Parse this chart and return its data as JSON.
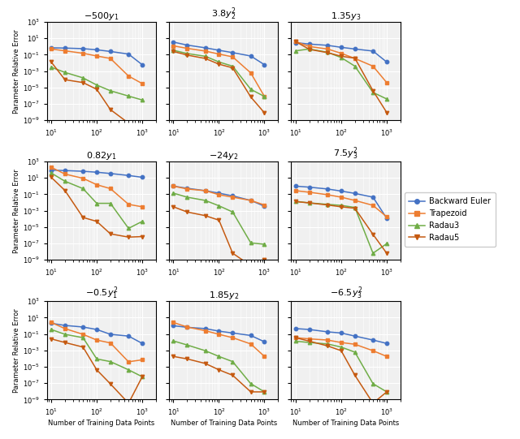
{
  "x_vals": [
    10,
    20,
    50,
    100,
    200,
    500,
    1000
  ],
  "title_math": [
    "$-500y_1$",
    "$3.8y_2^2$",
    "$1.35y_3$",
    "$0.82y_1$",
    "$-24y_2$",
    "$7.5y_3^2$",
    "$-0.5y_1^2$",
    "$1.85y_2$",
    "$-6.5y_3^2$"
  ],
  "methods": [
    "Backward Euler",
    "Trapezoid",
    "Radau3",
    "Radau5"
  ],
  "colors": [
    "#4472C4",
    "#ED7D31",
    "#70AD47",
    "#C55A11"
  ],
  "markers": [
    "o",
    "s",
    "^",
    "v"
  ],
  "ylim": [
    1e-09,
    1000.0
  ],
  "xlim": [
    8,
    2000
  ],
  "background_color": "#f0f0f0",
  "xlabel": "Number of Training Data Points",
  "ylabel": "Parameter Relative Error",
  "subplot_data": [
    {
      "Backward Euler": [
        0.7,
        0.65,
        0.55,
        0.4,
        0.25,
        0.12,
        0.006
      ],
      "Trapezoid": [
        0.5,
        0.3,
        0.15,
        0.07,
        0.035,
        0.00025,
        3e-05
      ],
      "Radau3": [
        0.003,
        0.0007,
        0.00015,
        2e-05,
        4e-06,
        9e-07,
        3e-07
      ],
      "Radau5": [
        0.013,
        9e-05,
        4e-05,
        6e-06,
        2e-08,
        4.5e-10,
        1.2e-10
      ]
    },
    {
      "Backward Euler": [
        3.5,
        1.5,
        0.7,
        0.35,
        0.18,
        0.07,
        0.006
      ],
      "Trapezoid": [
        1.2,
        0.6,
        0.28,
        0.12,
        0.055,
        0.0006,
        8e-07
      ],
      "Radau3": [
        0.35,
        0.14,
        0.065,
        0.013,
        0.004,
        6e-06,
        8e-07
      ],
      "Radau5": [
        0.25,
        0.09,
        0.035,
        0.007,
        0.0025,
        7e-07,
        8e-09
      ]
    },
    {
      "Backward Euler": [
        3.0,
        2.0,
        1.4,
        0.8,
        0.5,
        0.28,
        0.013
      ],
      "Trapezoid": [
        4.0,
        1.0,
        0.5,
        0.15,
        0.035,
        0.004,
        4e-05
      ],
      "Radau3": [
        0.3,
        0.5,
        0.2,
        0.045,
        0.004,
        2.5e-06,
        4e-07
      ],
      "Radau5": [
        4.0,
        0.45,
        0.18,
        0.065,
        0.038,
        4e-06,
        9e-09
      ]
    },
    {
      "Backward Euler": [
        90,
        80,
        65,
        50,
        35,
        20,
        12
      ],
      "Trapezoid": [
        200,
        30,
        9,
        1.5,
        0.5,
        0.006,
        0.003
      ],
      "Radau3": [
        40,
        4,
        0.5,
        0.008,
        0.008,
        7e-06,
        5e-05
      ],
      "Radau5": [
        12,
        0.3,
        0.00015,
        5e-05,
        1.5e-06,
        6e-07,
        7e-07
      ]
    },
    {
      "Backward Euler": [
        1.0,
        0.55,
        0.28,
        0.14,
        0.065,
        0.018,
        0.0035
      ],
      "Trapezoid": [
        1.0,
        0.45,
        0.28,
        0.09,
        0.045,
        0.018,
        0.005
      ],
      "Radau3": [
        0.14,
        0.045,
        0.018,
        0.004,
        0.0007,
        1.2e-07,
        8e-08
      ],
      "Radau5": [
        0.003,
        0.0007,
        0.00025,
        7e-05,
        6.5e-09,
        2e-10,
        9.5e-10
      ]
    },
    {
      "Backward Euler": [
        1.0,
        0.75,
        0.45,
        0.25,
        0.13,
        0.045,
        0.00012
      ],
      "Trapezoid": [
        0.28,
        0.18,
        0.09,
        0.045,
        0.018,
        0.0045,
        0.00018
      ],
      "Radau3": [
        0.014,
        0.009,
        0.006,
        0.0045,
        0.0025,
        6.5e-09,
        9.5e-08
      ],
      "Radau5": [
        0.013,
        0.009,
        0.005,
        0.003,
        0.002,
        1.3e-06,
        6.5e-09
      ]
    },
    {
      "Backward Euler": [
        2.0,
        1.1,
        0.7,
        0.35,
        0.09,
        0.055,
        0.007
      ],
      "Trapezoid": [
        2.5,
        0.45,
        0.09,
        0.018,
        0.008,
        4e-05,
        7e-05
      ],
      "Radau3": [
        0.35,
        0.09,
        0.035,
        9e-05,
        4.2e-05,
        4.2e-06,
        6e-07
      ],
      "Radau5": [
        0.025,
        0.009,
        0.0025,
        4.2e-06,
        8e-08,
        3.5e-10,
        6e-07
      ]
    },
    {
      "Backward Euler": [
        1.0,
        0.65,
        0.45,
        0.22,
        0.13,
        0.065,
        0.011
      ],
      "Trapezoid": [
        2.5,
        0.7,
        0.25,
        0.09,
        0.035,
        0.006,
        0.00018
      ],
      "Radau3": [
        0.014,
        0.0045,
        0.0009,
        0.00018,
        4.2e-05,
        8.5e-08,
        8.5e-09
      ],
      "Radau5": [
        0.00018,
        9e-05,
        2.5e-05,
        4.2e-06,
        9e-07,
        8.5e-09,
        8.5e-09
      ]
    },
    {
      "Backward Euler": [
        0.45,
        0.35,
        0.18,
        0.13,
        0.055,
        0.018,
        0.007
      ],
      "Trapezoid": [
        0.035,
        0.025,
        0.018,
        0.009,
        0.0055,
        0.0009,
        0.00018
      ],
      "Radau3": [
        0.013,
        0.009,
        0.006,
        0.0025,
        0.0006,
        8.5e-08,
        8.5e-09
      ],
      "Radau5": [
        0.035,
        0.013,
        0.0035,
        0.0009,
        9e-07,
        3.5e-10,
        8.5e-09
      ]
    }
  ]
}
